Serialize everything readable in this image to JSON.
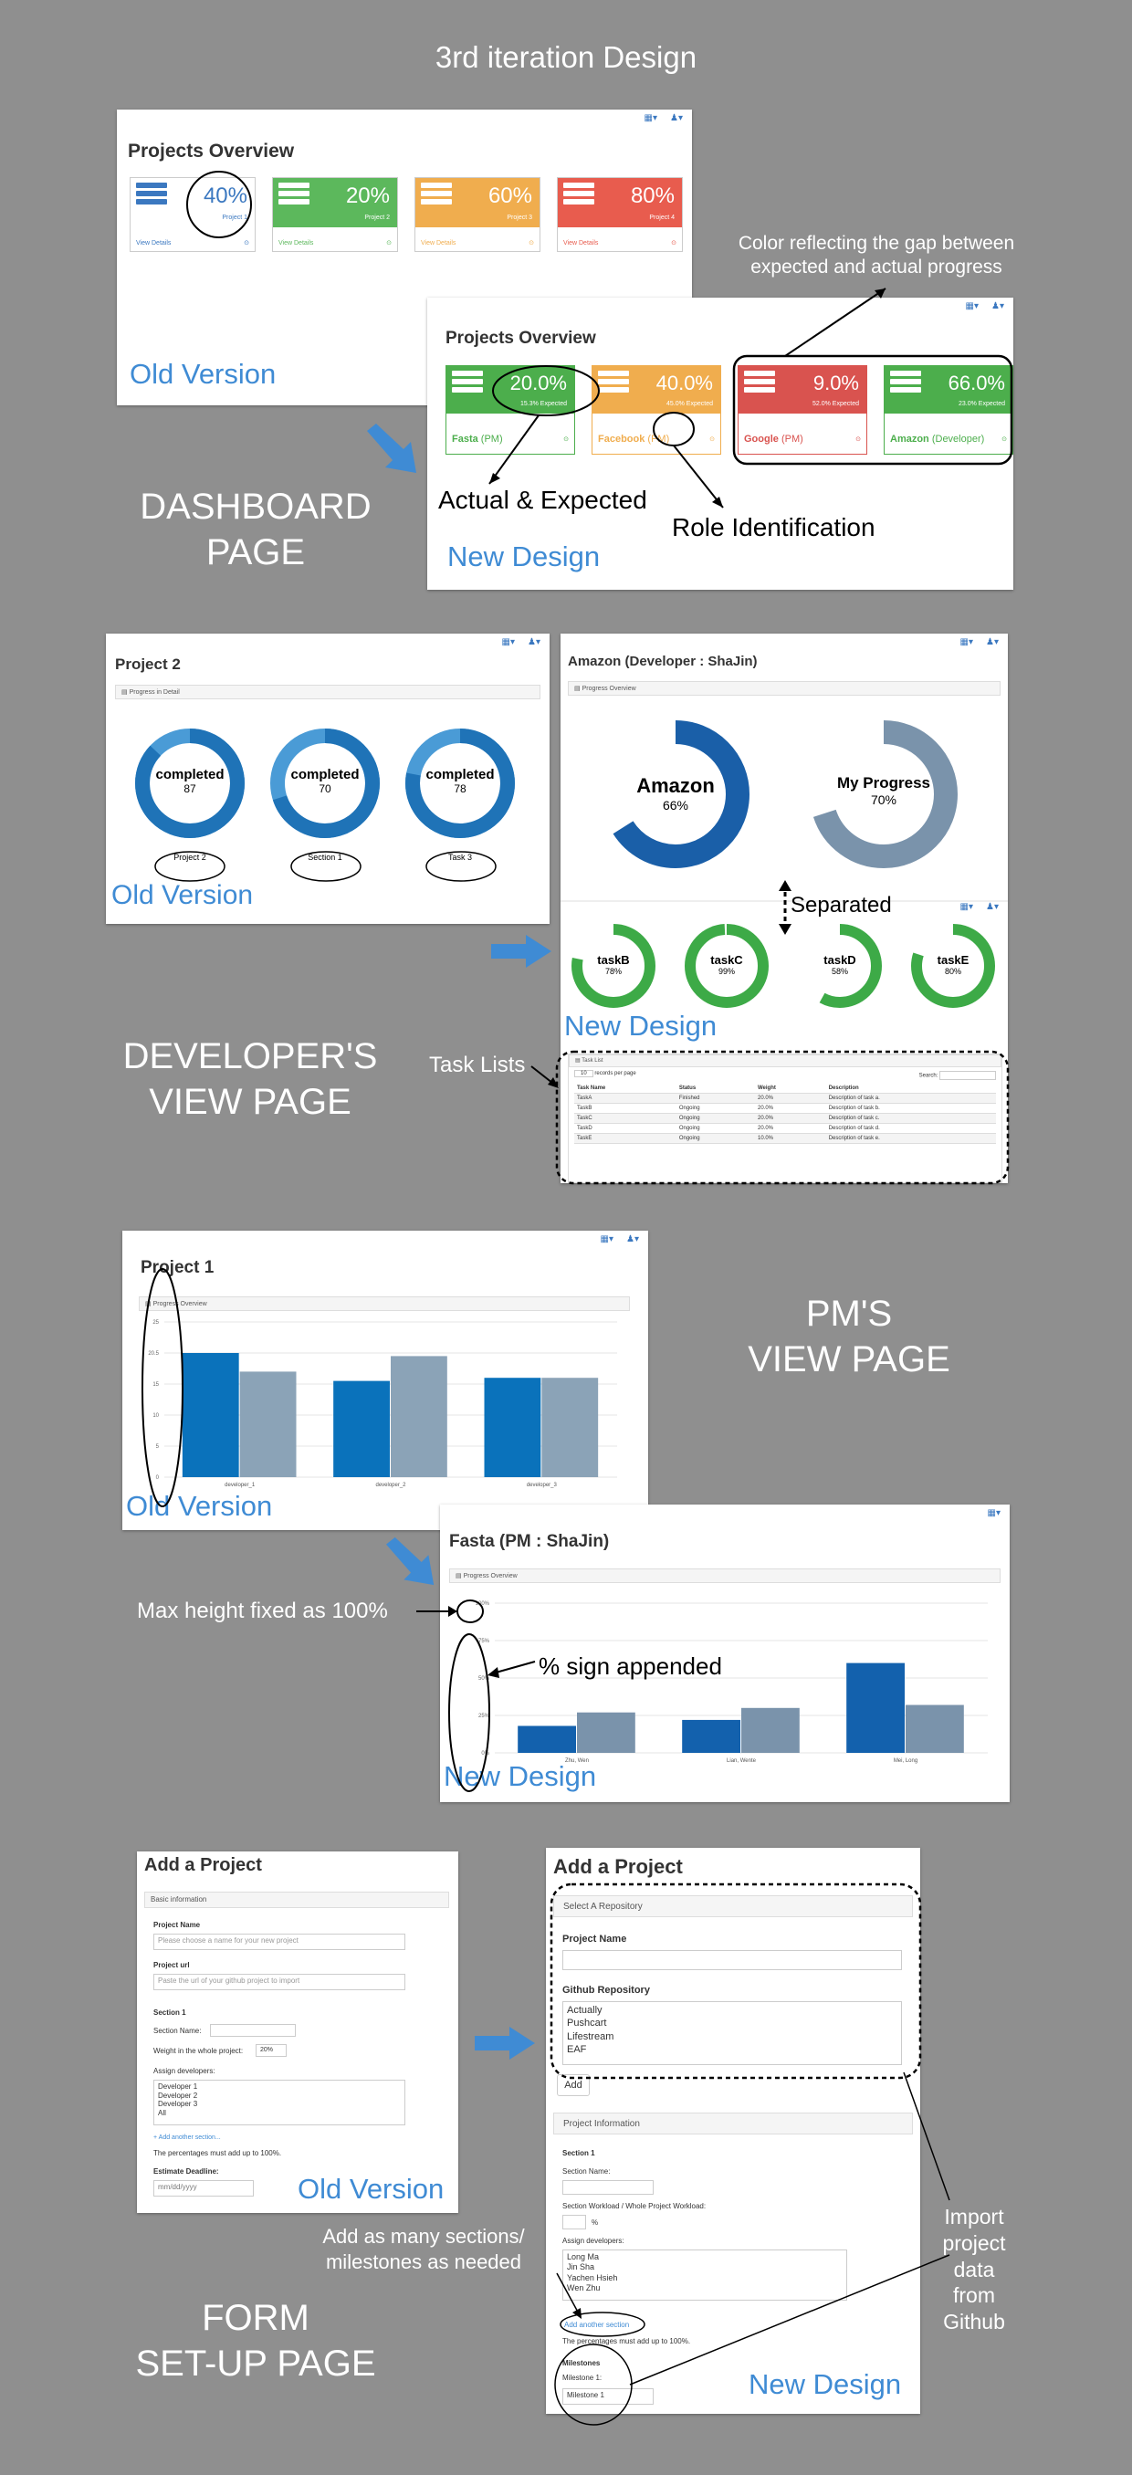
{
  "page_title": "3rd iteration Design",
  "dashboard": {
    "section_label": [
      "DASHBOARD",
      "PAGE"
    ],
    "old": {
      "title": "Projects Overview",
      "version_label": "Old Version",
      "cards": [
        {
          "pct": "40%",
          "name": "Project 1",
          "foot": "View Details",
          "color": "#ffffff"
        },
        {
          "pct": "20%",
          "name": "Project 2",
          "foot": "View Details",
          "color": "#5cb85c"
        },
        {
          "pct": "60%",
          "name": "Project 3",
          "foot": "View Details",
          "color": "#f0ad4e"
        },
        {
          "pct": "80%",
          "name": "Project 4",
          "foot": "View Details",
          "color": "#e85c4e"
        }
      ]
    },
    "new": {
      "title": "Projects Overview",
      "version_label": "New Design",
      "cards": [
        {
          "pct": "20.0%",
          "expected": "15.3% Expected",
          "name": "Fasta",
          "role": "(PM)",
          "color": "#4cae4c"
        },
        {
          "pct": "40.0%",
          "expected": "45.0% Expected",
          "name": "Facebook",
          "role": "(PM)",
          "color": "#f0ad4e"
        },
        {
          "pct": "9.0%",
          "expected": "52.0% Expected",
          "name": "Google",
          "role": "(PM)",
          "color": "#d9534f"
        },
        {
          "pct": "66.0%",
          "expected": "23.0% Expected",
          "name": "Amazon",
          "role": "(Developer)",
          "color": "#4cae4c"
        }
      ]
    },
    "notes": {
      "color_gap": [
        "Color reflecting the gap between",
        "expected and actual progress"
      ],
      "actual_expected": "Actual & Expected",
      "role_id": "Role Identification"
    }
  },
  "developer": {
    "section_label": [
      "DEVELOPER'S",
      "VIEW PAGE"
    ],
    "old": {
      "title": "Project 2",
      "panel": "Progress in Detail",
      "version_label": "Old Version",
      "donuts": [
        {
          "label": "completed",
          "value": "87",
          "caption": "Project 2",
          "pct": 0.87
        },
        {
          "label": "completed",
          "value": "70",
          "caption": "Section 1",
          "pct": 0.7
        },
        {
          "label": "completed",
          "value": "78",
          "caption": "Task 3",
          "pct": 0.78
        }
      ]
    },
    "new": {
      "title": "Amazon (Developer : ShaJin)",
      "panel": "Progress Overview",
      "version_label": "New Design",
      "big": [
        {
          "label": "Amazon",
          "value": "66%",
          "pct": 0.66,
          "color": "#1a5fa8"
        },
        {
          "label": "My Progress",
          "value": "70%",
          "pct": 0.7,
          "color": "#7a93ab"
        }
      ],
      "separated": "Separated",
      "tasks": [
        {
          "label": "taskB",
          "value": "78%",
          "pct": 0.78
        },
        {
          "label": "taskC",
          "value": "99%",
          "pct": 0.99
        },
        {
          "label": "taskD",
          "value": "58%",
          "pct": 0.58
        },
        {
          "label": "taskE",
          "value": "80%",
          "pct": 0.8
        }
      ],
      "task_list": {
        "panel": "Task List",
        "records": "10",
        "records_label": "records per page",
        "search_label": "Search:",
        "columns": [
          "Task Name",
          "Status",
          "Weight",
          "Description"
        ],
        "rows": [
          [
            "TaskA",
            "Finished",
            "20.0%",
            "Description of task a."
          ],
          [
            "TaskB",
            "Ongoing",
            "20.0%",
            "Description of task b."
          ],
          [
            "TaskC",
            "Ongoing",
            "20.0%",
            "Description of task c."
          ],
          [
            "TaskD",
            "Ongoing",
            "20.0%",
            "Description of task d."
          ],
          [
            "TaskE",
            "Ongoing",
            "10.0%",
            "Description of task e."
          ]
        ]
      }
    },
    "task_lists_note": "Task Lists"
  },
  "pm": {
    "section_label": [
      "PM'S",
      "VIEW PAGE"
    ],
    "old": {
      "title": "Project 1",
      "panel": "Progress Overview",
      "version_label": "Old Version",
      "chart_data": {
        "type": "bar",
        "categories": [
          "developer_1",
          "developer_2",
          "developer_3"
        ],
        "series": [
          {
            "values": [
              20,
              15.5,
              16
            ]
          },
          {
            "values": [
              17,
              19.5,
              16
            ]
          }
        ],
        "yticks": [
          "0",
          "5",
          "10",
          "15",
          "20.5",
          "25"
        ],
        "ylim": [
          0,
          25
        ]
      }
    },
    "new": {
      "title": "Fasta (PM : ShaJin)",
      "panel": "Progress Overview",
      "version_label": "New Design",
      "chart_data": {
        "type": "bar",
        "categories": [
          "Zhu, Wen",
          "Lian, Wente",
          "Mei, Long"
        ],
        "series": [
          {
            "values": [
              18,
              22,
              60
            ]
          },
          {
            "values": [
              27,
              30,
              32
            ]
          }
        ],
        "yticks": [
          "0%",
          "25%",
          "50%",
          "75%",
          "100%"
        ],
        "ylim": [
          0,
          100
        ]
      }
    },
    "notes": {
      "max_height": "Max height fixed as 100%",
      "pct_sign": "% sign appended"
    }
  },
  "form": {
    "section_label": [
      "FORM",
      "SET-UP PAGE"
    ],
    "old": {
      "title": "Add a Project",
      "version_label": "Old Version",
      "panel": "Basic information",
      "project_name_label": "Project Name",
      "project_name_placeholder": "Please choose a name for your new project",
      "project_url_label": "Project url",
      "project_url_placeholder": "Paste the url of your github project to import",
      "section_label": "Section 1",
      "section_name_label": "Section Name:",
      "weight_label": "Weight in the whole project:",
      "weight_value": "20%",
      "assign_label": "Assign developers:",
      "developers": [
        "Developer 1",
        "Developer 2",
        "Developer 3",
        "All"
      ],
      "add_section": "+ Add another section...",
      "percent_note": "The percentages must add up to 100%.",
      "deadline_label": "Estimate Deadline:",
      "deadline_placeholder": "mm/dd/yyyy"
    },
    "new": {
      "title": "Add a Project",
      "version_label": "New Design",
      "repo_panel": "Select A Repository",
      "project_name_label": "Project Name",
      "github_label": "Github Repository",
      "repos": [
        "Actually",
        "Pushcart",
        "Lifestream",
        "EAF"
      ],
      "add_button": "Add",
      "info_panel": "Project Information",
      "section_label": "Section 1",
      "section_name_label": "Section Name:",
      "workload_label": "Section Workload / Whole Project Workload:",
      "percent_sign": "%",
      "assign_label": "Assign developers:",
      "developers": [
        "Long Ma",
        "Jin Sha",
        "Yachen Hsieh",
        "Wen Zhu"
      ],
      "add_section": "Add another section",
      "percent_note": "The percentages must add up to 100%.",
      "milestones_label": "Milestones",
      "milestone1_label": "Milestone 1:",
      "milestone1_value": "Milestone 1"
    },
    "notes": {
      "add_sections": [
        "Add as many sections/",
        "milestones as needed"
      ],
      "import": [
        "Import",
        "project",
        "data",
        "from",
        "Github"
      ]
    }
  }
}
